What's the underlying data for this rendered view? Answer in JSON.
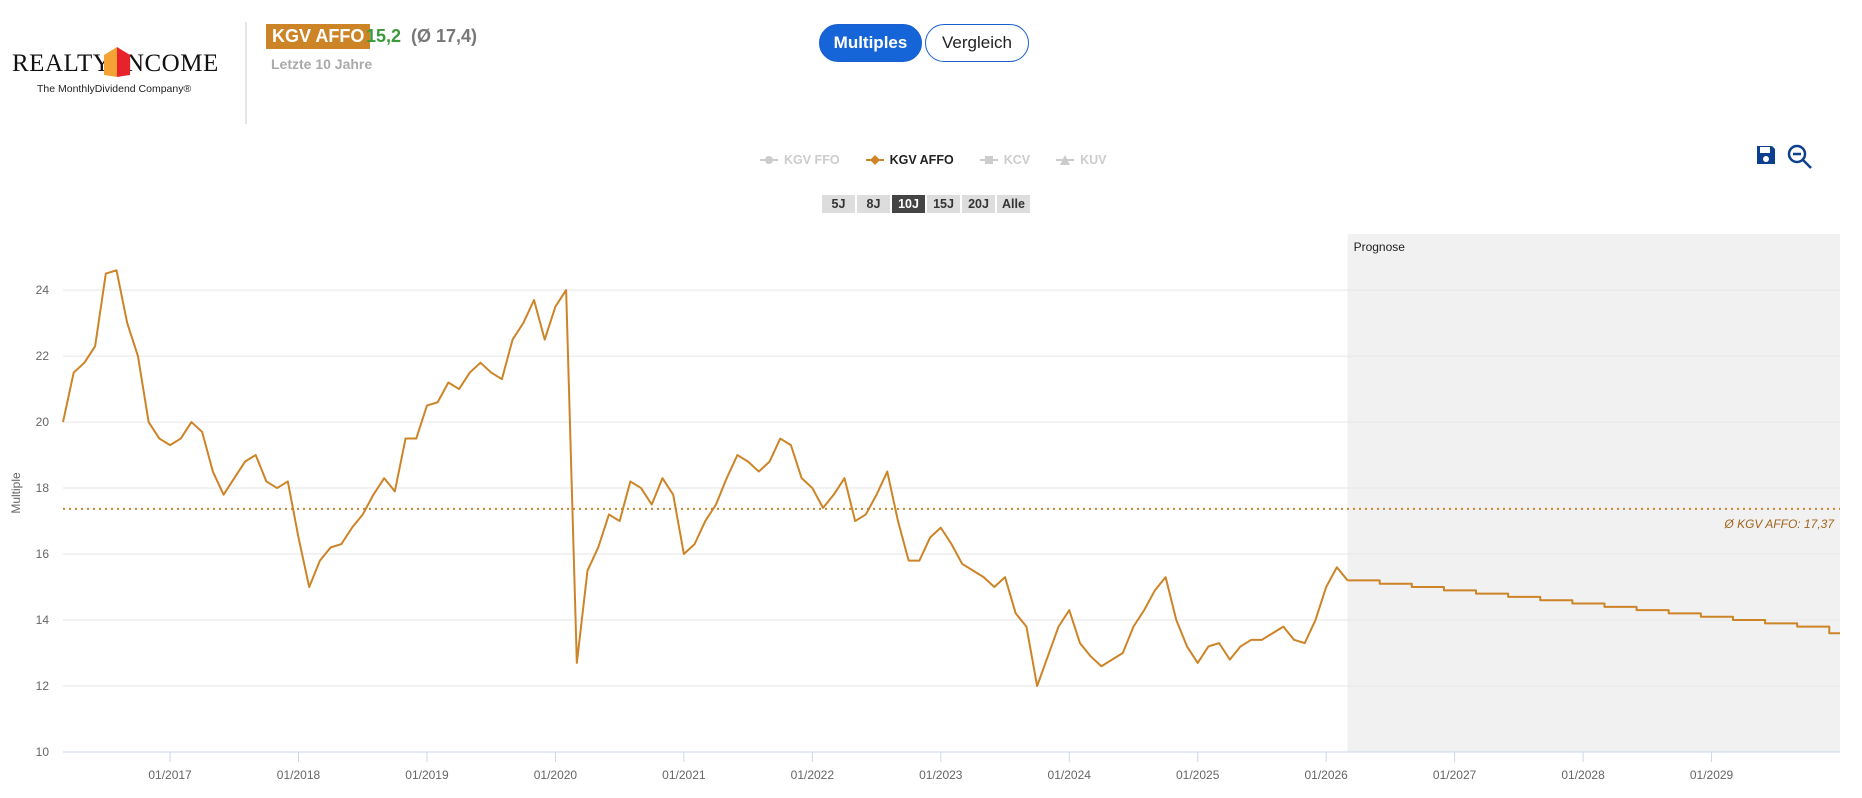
{
  "logo": {
    "wordmark": "REALTY INCOME",
    "tagline": "The MonthlyDividend Company®"
  },
  "header": {
    "metric_badge": "KGV AFFO",
    "current_value": "15,2",
    "average_value": "(Ø 17,4)",
    "subtitle": "Letzte 10 Jahre"
  },
  "view_toggle": {
    "multiples": "Multiples",
    "vergleich": "Vergleich",
    "active": "Multiples"
  },
  "legend": [
    {
      "label": "KGV FFO",
      "active": false,
      "marker": "circle"
    },
    {
      "label": "KGV AFFO",
      "active": true,
      "marker": "diamond"
    },
    {
      "label": "KCV",
      "active": false,
      "marker": "square"
    },
    {
      "label": "KUV",
      "active": false,
      "marker": "triangle"
    }
  ],
  "ranges": [
    "5J",
    "8J",
    "10J",
    "15J",
    "20J",
    "Alle"
  ],
  "active_range": "10J",
  "toolbar_icons": [
    "save-icon",
    "zoom-out-icon"
  ],
  "colors": {
    "series": "#cd8427",
    "accent": "#1565d8",
    "forecast_band": "#f1f1f1",
    "current_value": "#3a9a3a"
  },
  "chart_data": {
    "type": "line",
    "ylabel": "Multiple",
    "ylim": [
      10,
      25.7
    ],
    "yticks": [
      10,
      12,
      14,
      16,
      18,
      20,
      22,
      24
    ],
    "xlim": [
      "2016-03",
      "2029-12"
    ],
    "xticks": [
      "01/2017",
      "01/2018",
      "01/2019",
      "01/2020",
      "01/2021",
      "01/2022",
      "01/2023",
      "01/2024",
      "01/2025",
      "01/2026",
      "01/2027",
      "01/2028",
      "01/2029"
    ],
    "grid": true,
    "forecast_label": "Prognose",
    "forecast_start": "2026-03",
    "average": {
      "value": 17.37,
      "label": "Ø KGV AFFO: 17,37"
    },
    "series": [
      {
        "name": "KGV AFFO",
        "x": [
          "2016-03",
          "2016-04",
          "2016-05",
          "2016-06",
          "2016-07",
          "2016-08",
          "2016-09",
          "2016-10",
          "2016-11",
          "2016-12",
          "2017-01",
          "2017-02",
          "2017-03",
          "2017-04",
          "2017-05",
          "2017-06",
          "2017-07",
          "2017-08",
          "2017-09",
          "2017-10",
          "2017-11",
          "2017-12",
          "2018-01",
          "2018-02",
          "2018-03",
          "2018-04",
          "2018-05",
          "2018-06",
          "2018-07",
          "2018-08",
          "2018-09",
          "2018-10",
          "2018-11",
          "2018-12",
          "2019-01",
          "2019-02",
          "2019-03",
          "2019-04",
          "2019-05",
          "2019-06",
          "2019-07",
          "2019-08",
          "2019-09",
          "2019-10",
          "2019-11",
          "2019-12",
          "2020-01",
          "2020-02",
          "2020-03",
          "2020-04",
          "2020-05",
          "2020-06",
          "2020-07",
          "2020-08",
          "2020-09",
          "2020-10",
          "2020-11",
          "2020-12",
          "2021-01",
          "2021-02",
          "2021-03",
          "2021-04",
          "2021-05",
          "2021-06",
          "2021-07",
          "2021-08",
          "2021-09",
          "2021-10",
          "2021-11",
          "2021-12",
          "2022-01",
          "2022-02",
          "2022-03",
          "2022-04",
          "2022-05",
          "2022-06",
          "2022-07",
          "2022-08",
          "2022-09",
          "2022-10",
          "2022-11",
          "2022-12",
          "2023-01",
          "2023-02",
          "2023-03",
          "2023-04",
          "2023-05",
          "2023-06",
          "2023-07",
          "2023-08",
          "2023-09",
          "2023-10",
          "2023-11",
          "2023-12",
          "2024-01",
          "2024-02",
          "2024-03",
          "2024-04",
          "2024-05",
          "2024-06",
          "2024-07",
          "2024-08",
          "2024-09",
          "2024-10",
          "2024-11",
          "2024-12",
          "2025-01",
          "2025-02",
          "2025-03",
          "2025-04",
          "2025-05",
          "2025-06",
          "2025-07",
          "2025-08",
          "2025-09",
          "2025-10",
          "2025-11",
          "2025-12",
          "2026-01",
          "2026-02",
          "2026-03"
        ],
        "values": [
          20.0,
          21.5,
          21.8,
          22.3,
          24.5,
          24.6,
          23.0,
          22.0,
          20.0,
          19.5,
          19.3,
          19.5,
          20.0,
          19.7,
          18.5,
          17.8,
          18.3,
          18.8,
          19.0,
          18.2,
          18.0,
          18.2,
          16.5,
          15.0,
          15.8,
          16.2,
          16.3,
          16.8,
          17.2,
          17.8,
          18.3,
          17.9,
          19.5,
          19.5,
          20.5,
          20.6,
          21.2,
          21.0,
          21.5,
          21.8,
          21.5,
          21.3,
          22.5,
          23.0,
          23.7,
          22.5,
          23.5,
          24.0,
          12.7,
          15.5,
          16.2,
          17.2,
          17.0,
          18.2,
          18.0,
          17.5,
          18.3,
          17.8,
          16.0,
          16.3,
          17.0,
          17.5,
          18.3,
          19.0,
          18.8,
          18.5,
          18.8,
          19.5,
          19.3,
          18.3,
          18.0,
          17.4,
          17.8,
          18.3,
          17.0,
          17.2,
          17.8,
          18.5,
          17.0,
          15.8,
          15.8,
          16.5,
          16.8,
          16.3,
          15.7,
          15.5,
          15.3,
          15.0,
          15.3,
          14.2,
          13.8,
          12.0,
          12.9,
          13.8,
          14.3,
          13.3,
          12.9,
          12.6,
          12.8,
          13.0,
          13.8,
          14.3,
          14.9,
          15.3,
          14.0,
          13.2,
          12.7,
          13.2,
          13.3,
          12.8,
          13.2,
          13.4,
          13.4,
          13.6,
          13.8,
          13.4,
          13.3,
          14.0,
          15.0,
          15.6,
          15.2
        ]
      },
      {
        "name": "Prognose",
        "step": true,
        "x": [
          "2026-03",
          "2026-06",
          "2026-09",
          "2026-12",
          "2027-03",
          "2027-06",
          "2027-09",
          "2027-12",
          "2028-03",
          "2028-06",
          "2028-09",
          "2028-12",
          "2029-03",
          "2029-06",
          "2029-09",
          "2029-12"
        ],
        "values": [
          15.2,
          15.1,
          15.0,
          14.9,
          14.8,
          14.7,
          14.6,
          14.5,
          14.4,
          14.3,
          14.2,
          14.1,
          14.0,
          13.9,
          13.8,
          13.6
        ]
      }
    ]
  }
}
